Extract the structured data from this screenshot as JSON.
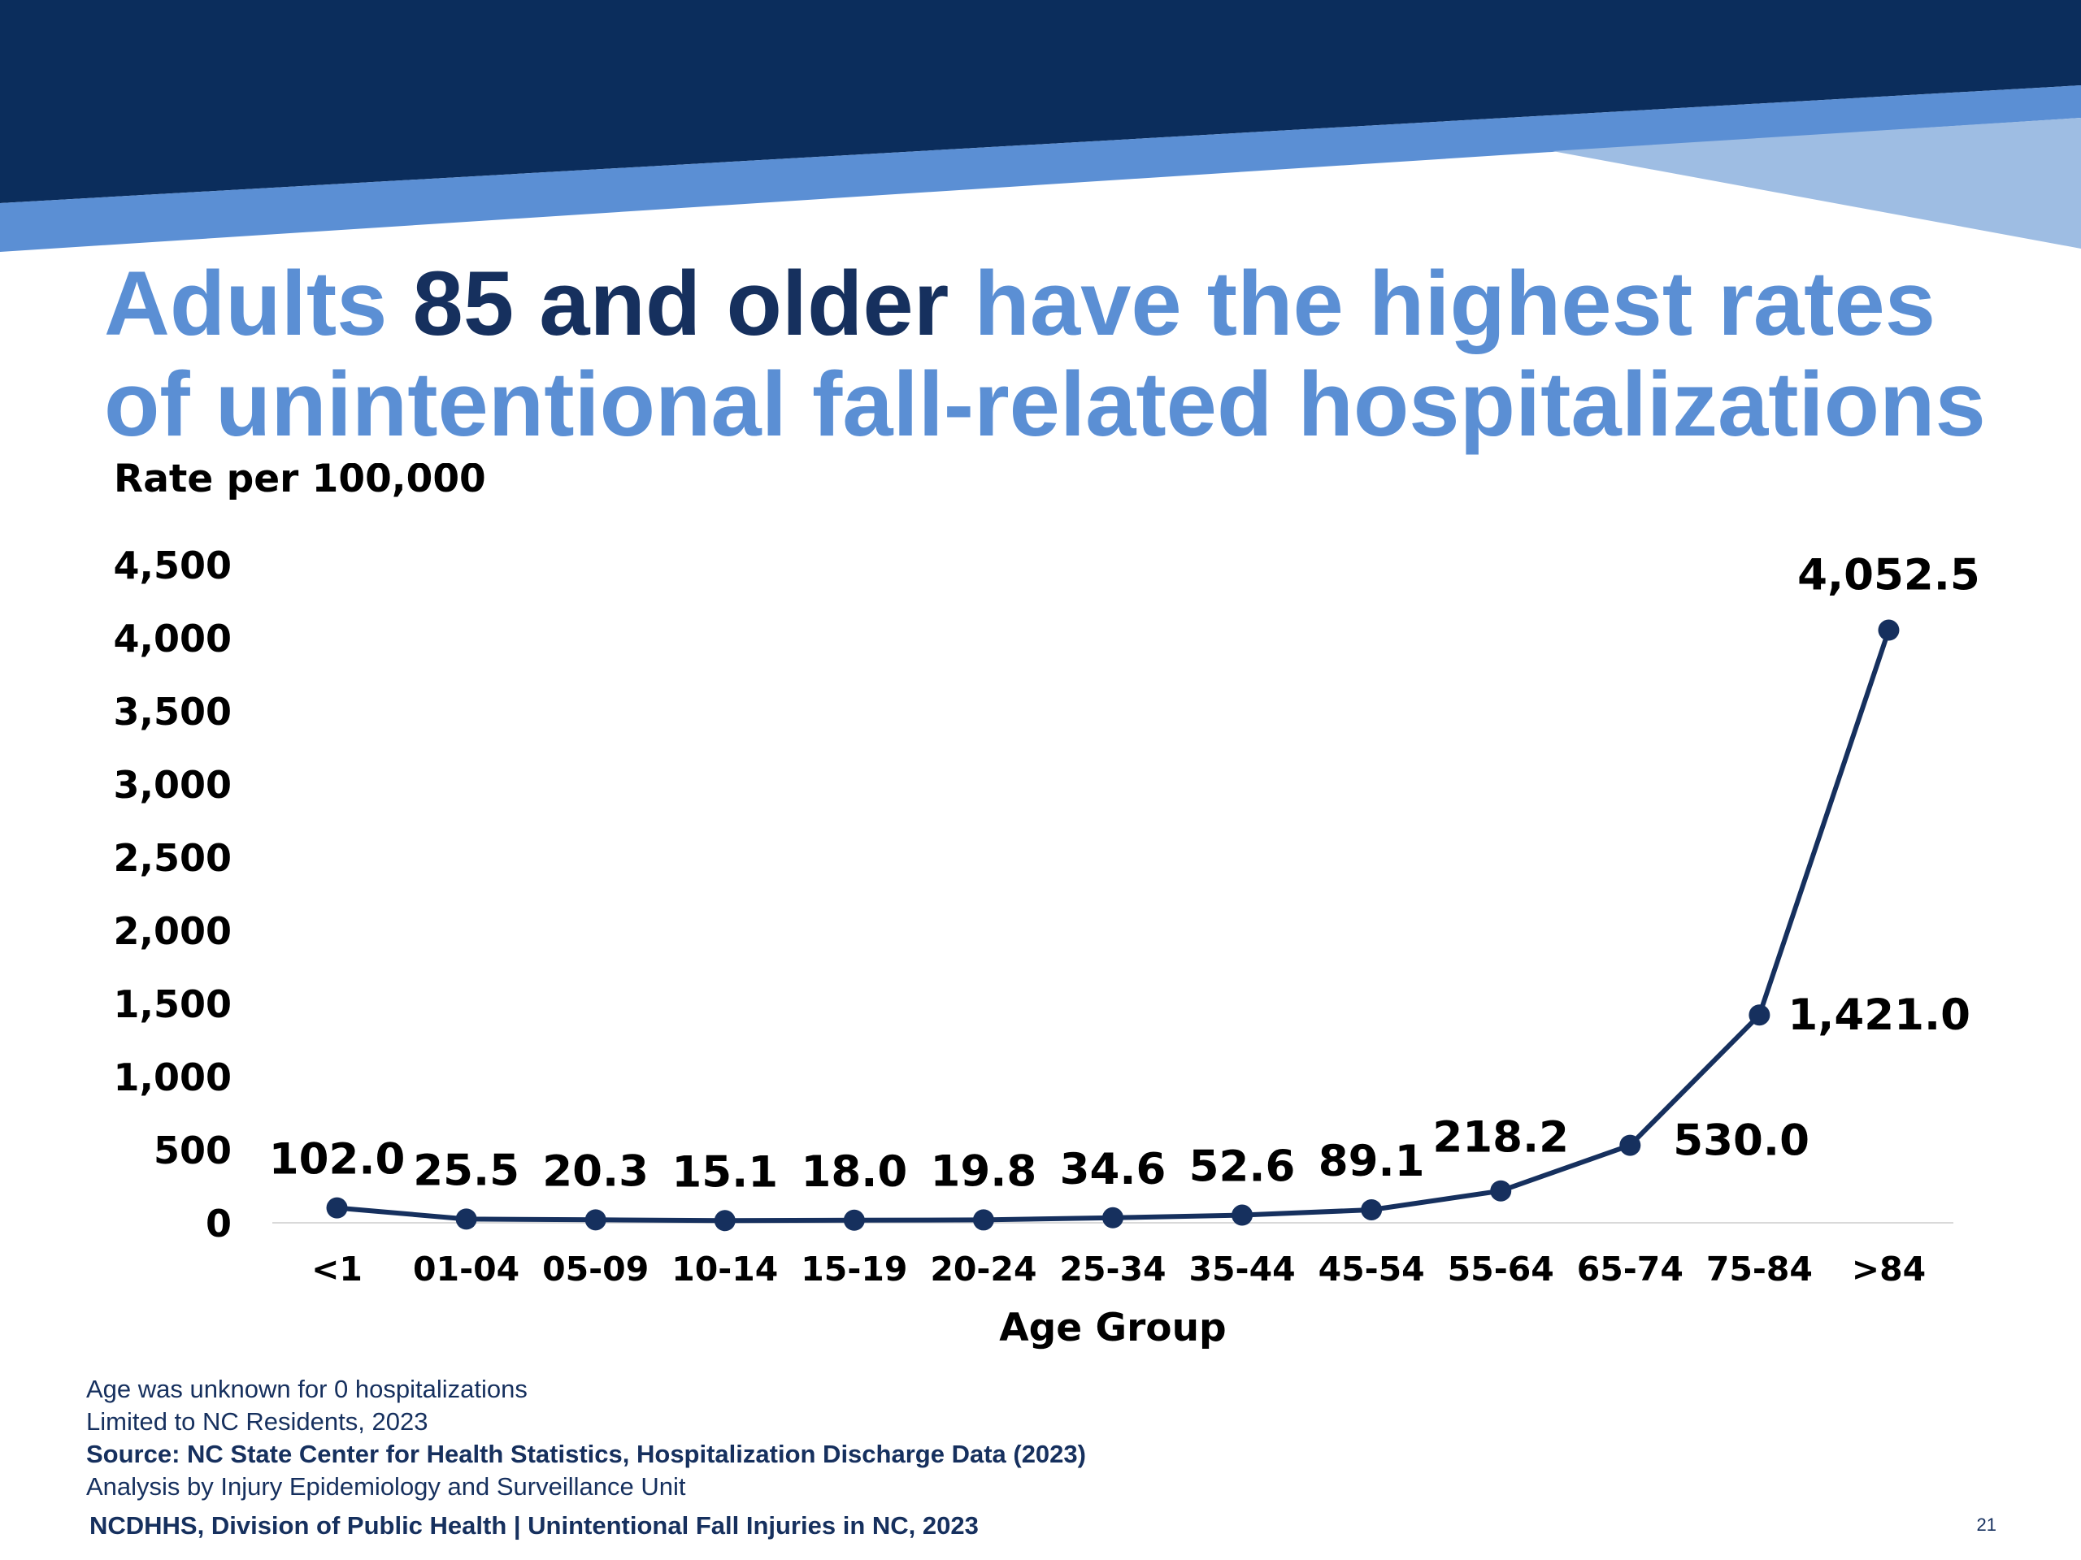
{
  "title": {
    "part1": "Adults ",
    "part2": "85 and older",
    "part3": " have the highest rates of unintentional fall-related hospitalizations"
  },
  "colors": {
    "navy": "#0b2d5c",
    "accent_blue": "#5b8fd4",
    "light_blue": "#9ebde3",
    "title_dark": "#16305e",
    "line": "#16305e"
  },
  "chart_data": {
    "type": "line",
    "ylabel": "Rate per 100,000",
    "xlabel": "Age Group",
    "ylim": [
      0,
      4500
    ],
    "yticks": [
      "0",
      "500",
      "1,000",
      "1,500",
      "2,000",
      "2,500",
      "3,000",
      "3,500",
      "4,000",
      "4,500"
    ],
    "categories": [
      "<1",
      "01-04",
      "05-09",
      "10-14",
      "15-19",
      "20-24",
      "25-34",
      "35-44",
      "45-54",
      "55-64",
      "65-74",
      "75-84",
      ">84"
    ],
    "values": [
      102.0,
      25.5,
      20.3,
      15.1,
      18.0,
      19.8,
      34.6,
      52.6,
      89.1,
      218.2,
      530.0,
      1421.0,
      4052.5
    ],
    "data_labels": [
      "102.0",
      "25.5",
      "20.3",
      "15.1",
      "18.0",
      "19.8",
      "34.6",
      "52.6",
      "89.1",
      "218.2",
      "530.0",
      "1,421.0",
      "4,052.5"
    ],
    "grid": false,
    "legend": "none"
  },
  "notes": [
    "Age was unknown for 0 hospitalizations",
    "Limited to NC Residents, 2023",
    "Source: NC State Center for Health Statistics, Hospitalization Discharge Data (2023)",
    "Analysis by Injury Epidemiology and Surveillance Unit"
  ],
  "footer": {
    "text": "NCDHHS, Division of Public Health | Unintentional Fall Injuries in NC, 2023",
    "page": "21"
  }
}
